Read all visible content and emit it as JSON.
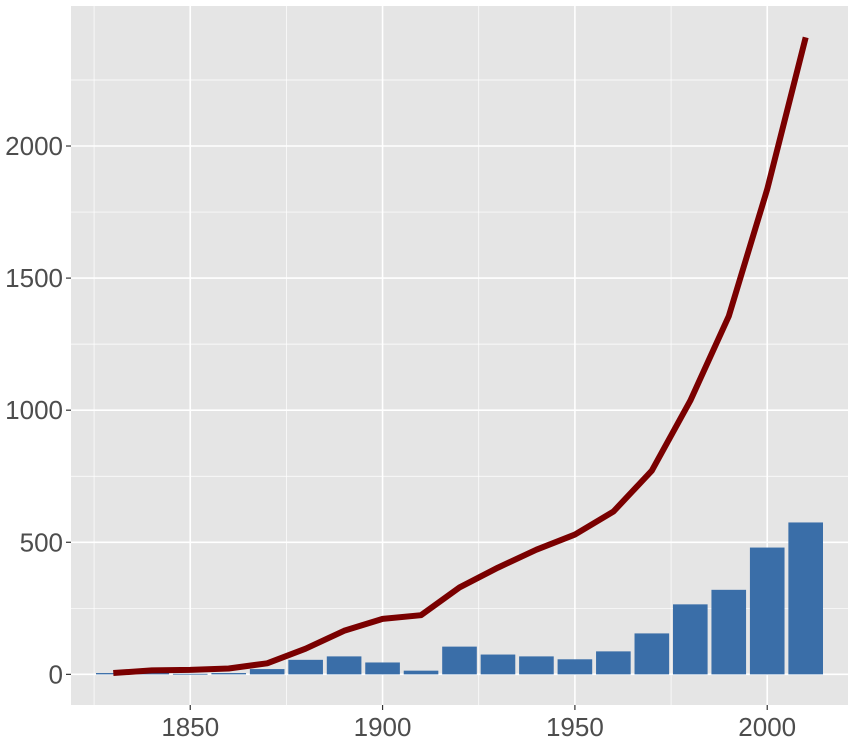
{
  "chart_data": {
    "type": "bar",
    "title": "",
    "xlabel": "",
    "ylabel": "",
    "xlim": [
      1819,
      2021
    ],
    "ylim": [
      -116,
      2530
    ],
    "x_ticks": [
      1850,
      1900,
      1950,
      2000
    ],
    "y_ticks": [
      0,
      500,
      1000,
      1500,
      2000
    ],
    "grid": true,
    "legend": "none",
    "colors": {
      "bars": "#3A6EA8",
      "line": "#7A0000",
      "panel": "#E5E5E5",
      "grid": "#FFFFFF"
    },
    "x": [
      1830,
      1840,
      1850,
      1860,
      1870,
      1880,
      1890,
      1900,
      1910,
      1920,
      1930,
      1940,
      1950,
      1960,
      1970,
      1980,
      1990,
      2000,
      2010
    ],
    "series": [
      {
        "kind": "bar",
        "values": [
          5,
          10,
          2,
          5,
          20,
          55,
          68,
          45,
          14,
          105,
          75,
          68,
          57,
          87,
          155,
          265,
          320,
          480,
          575
        ]
      },
      {
        "kind": "line",
        "values": [
          5,
          15,
          17,
          22,
          42,
          97,
          165,
          210,
          224,
          329,
          404,
          472,
          529,
          616,
          771,
          1036,
          1356,
          1836,
          2411
        ]
      }
    ]
  }
}
